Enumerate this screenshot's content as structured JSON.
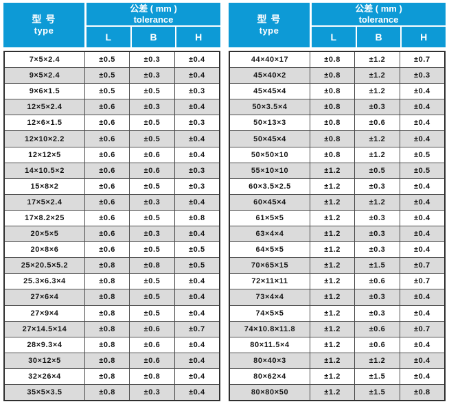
{
  "colors": {
    "header_blue": "#0d9ad6",
    "header_text": "#ffffff",
    "row_alt_gray": "#dbdbdb",
    "border_dark": "#2f2f2f",
    "body_text": "#141414"
  },
  "header": {
    "type_zh": "型 号",
    "type_en": "type",
    "tolerance_zh": "公差 ( mm )",
    "tolerance_en": "tolerance",
    "columns": [
      "L",
      "B",
      "H"
    ]
  },
  "tables": [
    {
      "rows": [
        [
          "7×5×2.4",
          "±0.5",
          "±0.3",
          "±0.4"
        ],
        [
          "9×5×2.4",
          "±0.5",
          "±0.3",
          "±0.4"
        ],
        [
          "9×6×1.5",
          "±0.5",
          "±0.5",
          "±0.3"
        ],
        [
          "12×5×2.4",
          "±0.6",
          "±0.3",
          "±0.4"
        ],
        [
          "12×6×1.5",
          "±0.6",
          "±0.5",
          "±0.3"
        ],
        [
          "12×10×2.2",
          "±0.6",
          "±0.5",
          "±0.4"
        ],
        [
          "12×12×5",
          "±0.6",
          "±0.6",
          "±0.4"
        ],
        [
          "14×10.5×2",
          "±0.6",
          "±0.6",
          "±0.3"
        ],
        [
          "15×8×2",
          "±0.6",
          "±0.5",
          "±0.3"
        ],
        [
          "17×5×2.4",
          "±0.6",
          "±0.3",
          "±0.4"
        ],
        [
          "17×8.2×25",
          "±0.6",
          "±0.5",
          "±0.8"
        ],
        [
          "20×5×5",
          "±0.6",
          "±0.3",
          "±0.4"
        ],
        [
          "20×8×6",
          "±0.6",
          "±0.5",
          "±0.5"
        ],
        [
          "25×20.5×5.2",
          "±0.8",
          "±0.8",
          "±0.5"
        ],
        [
          "25.3×6.3×4",
          "±0.8",
          "±0.5",
          "±0.4"
        ],
        [
          "27×6×4",
          "±0.8",
          "±0.5",
          "±0.4"
        ],
        [
          "27×9×4",
          "±0.8",
          "±0.5",
          "±0.4"
        ],
        [
          "27×14.5×14",
          "±0.8",
          "±0.6",
          "±0.7"
        ],
        [
          "28×9.3×4",
          "±0.8",
          "±0.6",
          "±0.4"
        ],
        [
          "30×12×5",
          "±0.8",
          "±0.6",
          "±0.4"
        ],
        [
          "32×26×4",
          "±0.8",
          "±0.8",
          "±0.4"
        ],
        [
          "35×5×3.5",
          "±0.8",
          "±0.3",
          "±0.4"
        ]
      ]
    },
    {
      "rows": [
        [
          "44×40×17",
          "±0.8",
          "±1.2",
          "±0.7"
        ],
        [
          "45×40×2",
          "±0.8",
          "±1.2",
          "±0.3"
        ],
        [
          "45×45×4",
          "±0.8",
          "±1.2",
          "±0.4"
        ],
        [
          "50×3.5×4",
          "±0.8",
          "±0.3",
          "±0.4"
        ],
        [
          "50×13×3",
          "±0.8",
          "±0.6",
          "±0.4"
        ],
        [
          "50×45×4",
          "±0.8",
          "±1.2",
          "±0.4"
        ],
        [
          "50×50×10",
          "±0.8",
          "±1.2",
          "±0.5"
        ],
        [
          "55×10×10",
          "±1.2",
          "±0.5",
          "±0.5"
        ],
        [
          "60×3.5×2.5",
          "±1.2",
          "±0.3",
          "±0.4"
        ],
        [
          "60×45×4",
          "±1.2",
          "±1.2",
          "±0.4"
        ],
        [
          "61×5×5",
          "±1.2",
          "±0.3",
          "±0.4"
        ],
        [
          "63×4×4",
          "±1.2",
          "±0.3",
          "±0.4"
        ],
        [
          "64×5×5",
          "±1.2",
          "±0.3",
          "±0.4"
        ],
        [
          "70×65×15",
          "±1.2",
          "±1.5",
          "±0.7"
        ],
        [
          "72×11×11",
          "±1.2",
          "±0.6",
          "±0.7"
        ],
        [
          "73×4×4",
          "±1.2",
          "±0.3",
          "±0.4"
        ],
        [
          "74×5×5",
          "±1.2",
          "±0.3",
          "±0.4"
        ],
        [
          "74×10.8×11.8",
          "±1.2",
          "±0.6",
          "±0.7"
        ],
        [
          "80×11.5×4",
          "±1.2",
          "±0.6",
          "±0.4"
        ],
        [
          "80×40×3",
          "±1.2",
          "±1.2",
          "±0.4"
        ],
        [
          "80×62×4",
          "±1.2",
          "±1.5",
          "±0.4"
        ],
        [
          "80×80×50",
          "±1.2",
          "±1.5",
          "±0.8"
        ]
      ]
    }
  ]
}
